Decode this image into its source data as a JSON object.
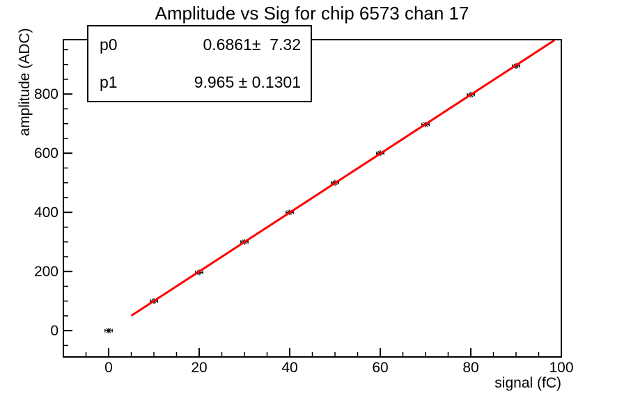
{
  "title": "Amplitude vs Sig for chip 6573 chan 17",
  "stats": {
    "rows": [
      {
        "name": "p0",
        "value": "0.6861±  7.32"
      },
      {
        "name": "p1",
        "value": "9.965 ± 0.1301"
      }
    ]
  },
  "chart_data": {
    "type": "scatter",
    "title": "Amplitude vs Sig for chip 6573 chan 17",
    "xlabel": "signal (fC)",
    "ylabel": "amplitude (ADC)",
    "xlim": [
      -10,
      100
    ],
    "ylim": [
      -89,
      984
    ],
    "x": [
      0,
      10,
      20,
      30,
      40,
      50,
      60,
      70,
      80,
      90
    ],
    "y": [
      0,
      100,
      197,
      300,
      400,
      500,
      600,
      697,
      798,
      895
    ],
    "xerr": 0.8,
    "x_major_ticks": [
      0,
      20,
      40,
      60,
      80,
      100
    ],
    "x_minor_step": 5,
    "y_major_ticks": [
      0,
      200,
      400,
      600,
      800
    ],
    "y_minor_step": 50,
    "grid": false,
    "legend": "none",
    "marker": {
      "style": "asterisk-8",
      "color": "#000000"
    },
    "fit": {
      "type": "linear",
      "p0": 0.6861,
      "p1": 9.965,
      "x_start": 5.0,
      "x_end": 98.5,
      "color": "#ff0000"
    }
  },
  "colors": {
    "background": "#ffffff",
    "frame": "#000000",
    "text": "#000000",
    "fit_line": "#ff0000"
  }
}
